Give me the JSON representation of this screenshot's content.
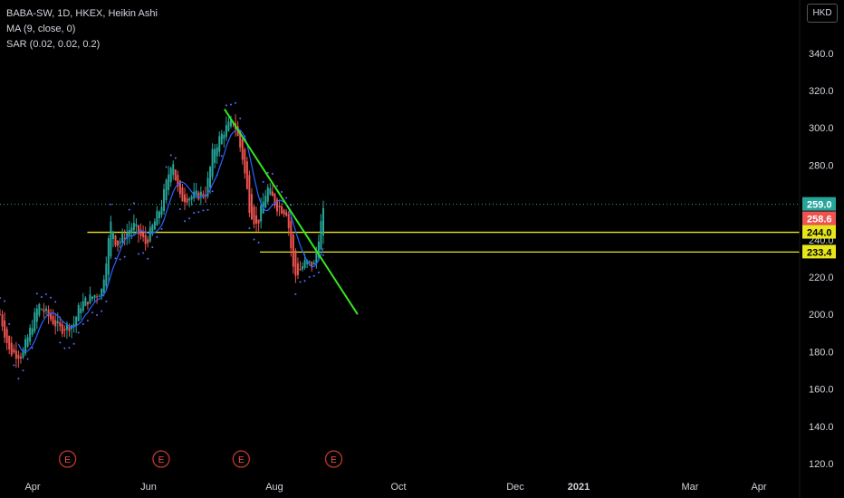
{
  "legend": {
    "symbol_line": "BABA-SW, 1D, HKEX, Heikin Ashi",
    "ma_line": "MA (9, close, 0)",
    "sar_line": "SAR (0.02, 0.02, 0.2)"
  },
  "currency_button": "HKD",
  "event_marker_label": "E",
  "colors": {
    "up": "#26a69a",
    "down": "#ef5350",
    "ma": "#2962ff",
    "sar": "#5b6bff",
    "support": "#e6e61a",
    "trend": "#35e81c",
    "axis_text": "#d1d4dc",
    "background": "#000000"
  },
  "chart_data": {
    "type": "candlestick",
    "title": "BABA-SW, 1D, HKEX, Heikin Ashi",
    "currency": "HKD",
    "y_axis": {
      "ticks": [
        "120.0",
        "140.0",
        "160.0",
        "180.0",
        "200.0",
        "220.0",
        "240.0",
        "260.0",
        "280.0",
        "300.0",
        "320.0",
        "340.0"
      ],
      "ylim": [
        112,
        352
      ]
    },
    "x_axis": {
      "labels": [
        "Apr",
        "Jun",
        "Aug",
        "Oct",
        "Dec",
        "2021",
        "Mar",
        "Apr"
      ],
      "bold_labels": [
        "2021"
      ],
      "date_range": [
        "2020-03-18",
        "2021-04-10"
      ]
    },
    "price_labels": [
      {
        "text": "259.0",
        "value": 259.0,
        "color": "#26a69a"
      },
      {
        "text": "258.6",
        "value": 258.6,
        "color": "#ef5350"
      },
      {
        "text": "244.0",
        "value": 244.0,
        "color": "#e6e61a"
      },
      {
        "text": "233.4",
        "value": 233.4,
        "color": "#e6e61a"
      }
    ],
    "horizontal_lines": [
      {
        "value": 244.0,
        "from": "2020-06-10",
        "to_edge": true
      },
      {
        "value": 233.4,
        "from": "2020-11-23",
        "to_edge": true
      }
    ],
    "trend_line": {
      "from": [
        "2020-10-20",
        310
      ],
      "to": [
        "2021-02-25",
        200
      ]
    },
    "earnings_markers": [
      "2020-05-22",
      "2020-08-20",
      "2020-11-05",
      "2021-02-02"
    ],
    "guide_points": [
      [
        "2020-03-18",
        200
      ],
      [
        "2020-03-27",
        180
      ],
      [
        "2020-04-08",
        178
      ],
      [
        "2020-04-24",
        205
      ],
      [
        "2020-05-15",
        192
      ],
      [
        "2020-05-28",
        195
      ],
      [
        "2020-06-03",
        205
      ],
      [
        "2020-06-24",
        213
      ],
      [
        "2020-07-03",
        250
      ],
      [
        "2020-07-08",
        237
      ],
      [
        "2020-07-24",
        248
      ],
      [
        "2020-08-05",
        238
      ],
      [
        "2020-08-20",
        258
      ],
      [
        "2020-08-31",
        285
      ],
      [
        "2020-09-02",
        275
      ],
      [
        "2020-09-07",
        262
      ],
      [
        "2020-09-17",
        263
      ],
      [
        "2020-10-02",
        265
      ],
      [
        "2020-10-09",
        288
      ],
      [
        "2020-10-20",
        299
      ],
      [
        "2020-10-29",
        304
      ],
      [
        "2020-11-06",
        285
      ],
      [
        "2020-11-13",
        257
      ],
      [
        "2020-11-20",
        247
      ],
      [
        "2020-11-30",
        268
      ],
      [
        "2020-12-09",
        258
      ],
      [
        "2020-12-19",
        255
      ],
      [
        "2020-12-26",
        220
      ],
      [
        "2021-01-06",
        228
      ],
      [
        "2021-01-14",
        226
      ],
      [
        "2021-01-20",
        247
      ],
      [
        "2021-01-25",
        259
      ]
    ]
  }
}
